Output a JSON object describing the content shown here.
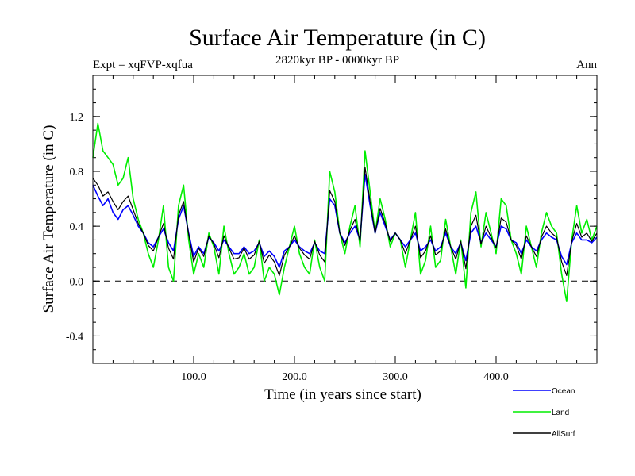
{
  "chart_data": {
    "type": "line",
    "title": "Surface Air Temperature (in C)",
    "subtitle": "2820kyr BP - 0000kyr BP",
    "left_label": "Expt = xqFVP-xqfua",
    "right_label": "Ann",
    "xlabel": "Time (in years since start)",
    "ylabel": "Surface Air Temperature (in C)",
    "xlim": [
      0,
      500
    ],
    "ylim": [
      -0.6,
      1.5
    ],
    "xticks": [
      100,
      200,
      300,
      400
    ],
    "xtick_labels": [
      "100.0",
      "200.0",
      "300.0",
      "400.0"
    ],
    "yticks": [
      -0.4,
      0.0,
      0.4,
      0.8,
      1.2
    ],
    "ytick_labels": [
      "-0.4",
      "0.0",
      "0.4",
      "0.8",
      "1.2"
    ],
    "reference_line": 0.0,
    "legend_position": "bottom-right",
    "series": [
      {
        "name": "Ocean",
        "color": "#0000ff",
        "x_step": 5,
        "values": [
          0.7,
          0.62,
          0.55,
          0.6,
          0.5,
          0.45,
          0.52,
          0.55,
          0.48,
          0.4,
          0.35,
          0.28,
          0.25,
          0.32,
          0.38,
          0.28,
          0.22,
          0.45,
          0.55,
          0.35,
          0.18,
          0.25,
          0.2,
          0.32,
          0.28,
          0.22,
          0.3,
          0.25,
          0.2,
          0.2,
          0.25,
          0.2,
          0.22,
          0.28,
          0.18,
          0.22,
          0.18,
          0.1,
          0.22,
          0.25,
          0.3,
          0.25,
          0.22,
          0.2,
          0.28,
          0.22,
          0.2,
          0.6,
          0.55,
          0.35,
          0.28,
          0.35,
          0.4,
          0.3,
          0.78,
          0.55,
          0.35,
          0.5,
          0.4,
          0.3,
          0.35,
          0.3,
          0.25,
          0.3,
          0.35,
          0.22,
          0.25,
          0.3,
          0.22,
          0.25,
          0.35,
          0.25,
          0.2,
          0.28,
          0.15,
          0.35,
          0.4,
          0.28,
          0.35,
          0.3,
          0.25,
          0.4,
          0.38,
          0.3,
          0.28,
          0.2,
          0.3,
          0.25,
          0.22,
          0.3,
          0.35,
          0.32,
          0.3,
          0.18,
          0.12,
          0.28,
          0.35,
          0.3,
          0.3,
          0.28,
          0.32
        ]
      },
      {
        "name": "Land",
        "color": "#00ee00",
        "x_step": 5,
        "values": [
          0.9,
          1.15,
          0.95,
          0.9,
          0.85,
          0.7,
          0.75,
          0.9,
          0.6,
          0.45,
          0.35,
          0.2,
          0.1,
          0.3,
          0.55,
          0.1,
          0.0,
          0.55,
          0.7,
          0.3,
          0.05,
          0.2,
          0.1,
          0.35,
          0.25,
          0.05,
          0.4,
          0.2,
          0.05,
          0.1,
          0.2,
          0.05,
          0.1,
          0.3,
          0.0,
          0.1,
          0.05,
          -0.1,
          0.1,
          0.25,
          0.4,
          0.2,
          0.1,
          0.05,
          0.3,
          0.1,
          0.0,
          0.8,
          0.65,
          0.35,
          0.2,
          0.4,
          0.55,
          0.25,
          0.95,
          0.65,
          0.35,
          0.6,
          0.45,
          0.25,
          0.35,
          0.3,
          0.1,
          0.3,
          0.5,
          0.05,
          0.15,
          0.4,
          0.1,
          0.15,
          0.45,
          0.25,
          0.05,
          0.3,
          -0.05,
          0.5,
          0.65,
          0.25,
          0.5,
          0.35,
          0.2,
          0.6,
          0.55,
          0.3,
          0.2,
          0.05,
          0.4,
          0.25,
          0.1,
          0.35,
          0.5,
          0.4,
          0.35,
          0.05,
          -0.15,
          0.3,
          0.55,
          0.35,
          0.45,
          0.3,
          0.4
        ]
      },
      {
        "name": "AllSurf",
        "color": "#000000",
        "x_step": 5,
        "values": [
          0.75,
          0.7,
          0.62,
          0.65,
          0.58,
          0.52,
          0.58,
          0.62,
          0.52,
          0.42,
          0.35,
          0.26,
          0.22,
          0.32,
          0.42,
          0.24,
          0.16,
          0.48,
          0.58,
          0.34,
          0.14,
          0.24,
          0.18,
          0.33,
          0.27,
          0.17,
          0.33,
          0.24,
          0.16,
          0.17,
          0.24,
          0.16,
          0.19,
          0.29,
          0.13,
          0.19,
          0.14,
          0.04,
          0.19,
          0.25,
          0.33,
          0.24,
          0.19,
          0.16,
          0.29,
          0.19,
          0.14,
          0.66,
          0.58,
          0.35,
          0.26,
          0.37,
          0.45,
          0.29,
          0.83,
          0.58,
          0.35,
          0.53,
          0.42,
          0.29,
          0.35,
          0.3,
          0.2,
          0.3,
          0.4,
          0.17,
          0.22,
          0.33,
          0.19,
          0.22,
          0.38,
          0.25,
          0.16,
          0.29,
          0.09,
          0.4,
          0.48,
          0.27,
          0.4,
          0.32,
          0.24,
          0.46,
          0.43,
          0.3,
          0.26,
          0.16,
          0.33,
          0.25,
          0.18,
          0.32,
          0.4,
          0.35,
          0.32,
          0.14,
          0.04,
          0.29,
          0.42,
          0.32,
          0.35,
          0.29,
          0.35
        ]
      }
    ]
  }
}
